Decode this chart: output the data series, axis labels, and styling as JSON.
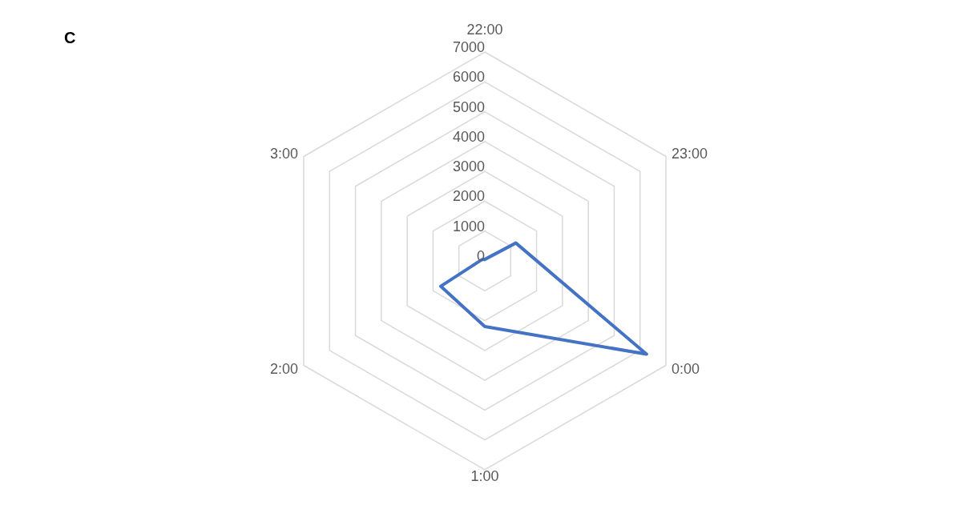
{
  "chart_data": {
    "type": "radar",
    "title": "C",
    "categories": [
      "22:00",
      "23:00",
      "0:00",
      "1:00",
      "2:00",
      "3:00"
    ],
    "series": [
      {
        "color": "#4472c4",
        "values": [
          50,
          1200,
          6250,
          2200,
          1700,
          100
        ]
      }
    ],
    "ylim": [
      0,
      7000
    ],
    "yticks": [
      0,
      1000,
      2000,
      3000,
      4000,
      5000,
      6000,
      7000
    ],
    "grid": true,
    "marker": "none"
  }
}
